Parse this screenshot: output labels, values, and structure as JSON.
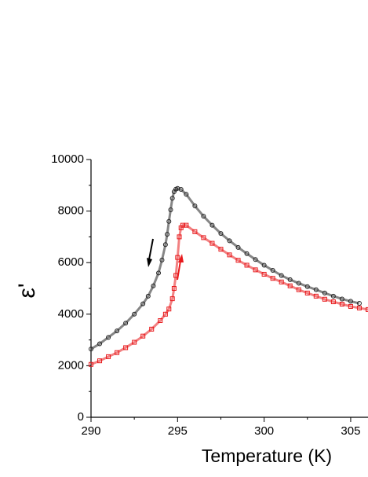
{
  "chart_data": {
    "type": "scatter",
    "x_label": "Temperature (K)",
    "y_label": "ε'",
    "xlim": [
      290,
      306
    ],
    "xticks": [
      290,
      295,
      300,
      305
    ],
    "ylim": [
      0,
      10000
    ],
    "yticks": [
      0,
      2000,
      4000,
      6000,
      8000,
      10000
    ],
    "series": [
      {
        "color": "#222222",
        "marker": "circle",
        "x": [
          290,
          290.5,
          291,
          291.5,
          292,
          292.5,
          293,
          293.3,
          293.6,
          293.9,
          294.1,
          294.3,
          294.4,
          294.5,
          294.6,
          294.7,
          294.8,
          294.9,
          295,
          295.2,
          295.5,
          296,
          296.5,
          297,
          297.5,
          298,
          298.5,
          299,
          299.5,
          300,
          300.5,
          301,
          301.5,
          302,
          302.5,
          303,
          303.5,
          304,
          304.5,
          305,
          305.5
        ],
        "values": [
          2650,
          2850,
          3100,
          3350,
          3650,
          4000,
          4400,
          4700,
          5100,
          5600,
          6100,
          6700,
          7100,
          7600,
          8050,
          8500,
          8750,
          8850,
          8880,
          8840,
          8650,
          8200,
          7800,
          7450,
          7130,
          6850,
          6590,
          6350,
          6120,
          5900,
          5700,
          5500,
          5340,
          5200,
          5070,
          4950,
          4820,
          4700,
          4590,
          4500,
          4420
        ]
      },
      {
        "color": "#e8191c",
        "marker": "square",
        "x": [
          290,
          290.5,
          291,
          291.5,
          292,
          292.5,
          293,
          293.5,
          294,
          294.3,
          294.5,
          294.7,
          294.8,
          294.9,
          295,
          295.1,
          295.2,
          295.3,
          295.5,
          296,
          296.5,
          297,
          297.5,
          298,
          298.5,
          299,
          299.5,
          300,
          300.5,
          301,
          301.5,
          302,
          302.5,
          303,
          303.5,
          304,
          304.5,
          305,
          305.5,
          306
        ],
        "values": [
          2050,
          2190,
          2350,
          2510,
          2700,
          2910,
          3150,
          3420,
          3750,
          4000,
          4200,
          4600,
          5000,
          5500,
          6200,
          7000,
          7350,
          7450,
          7450,
          7200,
          6970,
          6750,
          6520,
          6300,
          6090,
          5900,
          5720,
          5550,
          5390,
          5250,
          5100,
          4950,
          4820,
          4700,
          4580,
          4480,
          4390,
          4300,
          4240,
          4180
        ]
      }
    ]
  }
}
